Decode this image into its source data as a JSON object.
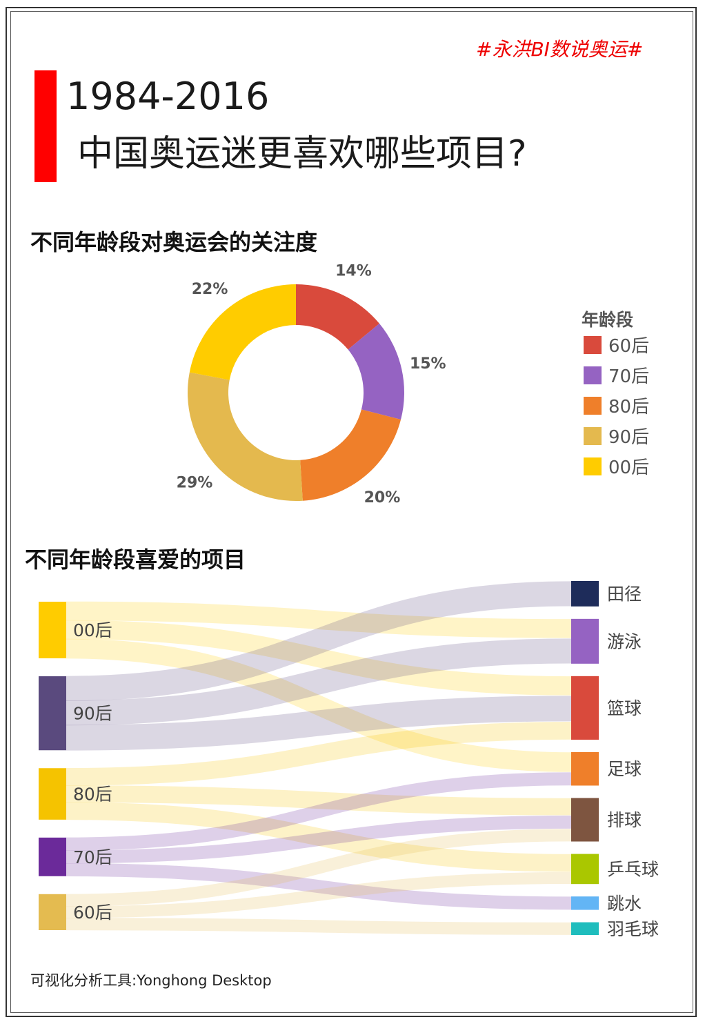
{
  "header": {
    "hashtag": "#永洪BI数说奥运#",
    "title_line1": "1984-2016",
    "title_line2": "中国奥运迷更喜欢哪些项目?"
  },
  "footer": {
    "tool": "可视化分析工具:Yonghong Desktop"
  },
  "chart_data": [
    {
      "type": "pie",
      "title": "不同年龄段对奥运会的关注度",
      "legend_title": "年龄段",
      "legend_position": "right",
      "categories": [
        "60后",
        "70后",
        "80后",
        "90后",
        "00后"
      ],
      "values": [
        14,
        15,
        20,
        29,
        22
      ],
      "labels": [
        "14%",
        "15%",
        "20%",
        "29%",
        "22%"
      ],
      "colors": [
        "#d94a3c",
        "#9563c2",
        "#ef7f2a",
        "#e4b94e",
        "#ffcc00"
      ]
    },
    {
      "type": "sankey",
      "title": "不同年龄段喜爱的项目",
      "sources": [
        {
          "name": "00后",
          "color": "#ffcc00"
        },
        {
          "name": "90后",
          "color": "#5a4a7e"
        },
        {
          "name": "80后",
          "color": "#f5c300"
        },
        {
          "name": "70后",
          "color": "#6b2a9a"
        },
        {
          "name": "60后",
          "color": "#e4bb50"
        }
      ],
      "targets": [
        {
          "name": "田径",
          "color": "#1e2c5a"
        },
        {
          "name": "游泳",
          "color": "#9563c2"
        },
        {
          "name": "篮球",
          "color": "#d94a3c"
        },
        {
          "name": "足球",
          "color": "#ef7f2a"
        },
        {
          "name": "排球",
          "color": "#7e5540"
        },
        {
          "name": "乒乓球",
          "color": "#aac700"
        },
        {
          "name": "跳水",
          "color": "#63b5f5"
        },
        {
          "name": "羽毛球",
          "color": "#1fbdbd"
        }
      ],
      "flows": [
        {
          "source": "00后",
          "target": "游泳",
          "value": 29
        },
        {
          "source": "00后",
          "target": "篮球",
          "value": 29
        },
        {
          "source": "00后",
          "target": "足球",
          "value": 30
        },
        {
          "source": "90后",
          "target": "田径",
          "value": 38
        },
        {
          "source": "90后",
          "target": "游泳",
          "value": 38
        },
        {
          "source": "90后",
          "target": "篮球",
          "value": 39
        },
        {
          "source": "80后",
          "target": "篮球",
          "value": 27
        },
        {
          "source": "80后",
          "target": "排球",
          "value": 26
        },
        {
          "source": "80后",
          "target": "乒乓球",
          "value": 27
        },
        {
          "source": "70后",
          "target": "足球",
          "value": 20
        },
        {
          "source": "70后",
          "target": "排球",
          "value": 20
        },
        {
          "source": "70后",
          "target": "跳水",
          "value": 20
        },
        {
          "source": "60后",
          "target": "排球",
          "value": 19
        },
        {
          "source": "60后",
          "target": "乒乓球",
          "value": 18
        },
        {
          "source": "60后",
          "target": "羽毛球",
          "value": 19
        }
      ]
    }
  ]
}
